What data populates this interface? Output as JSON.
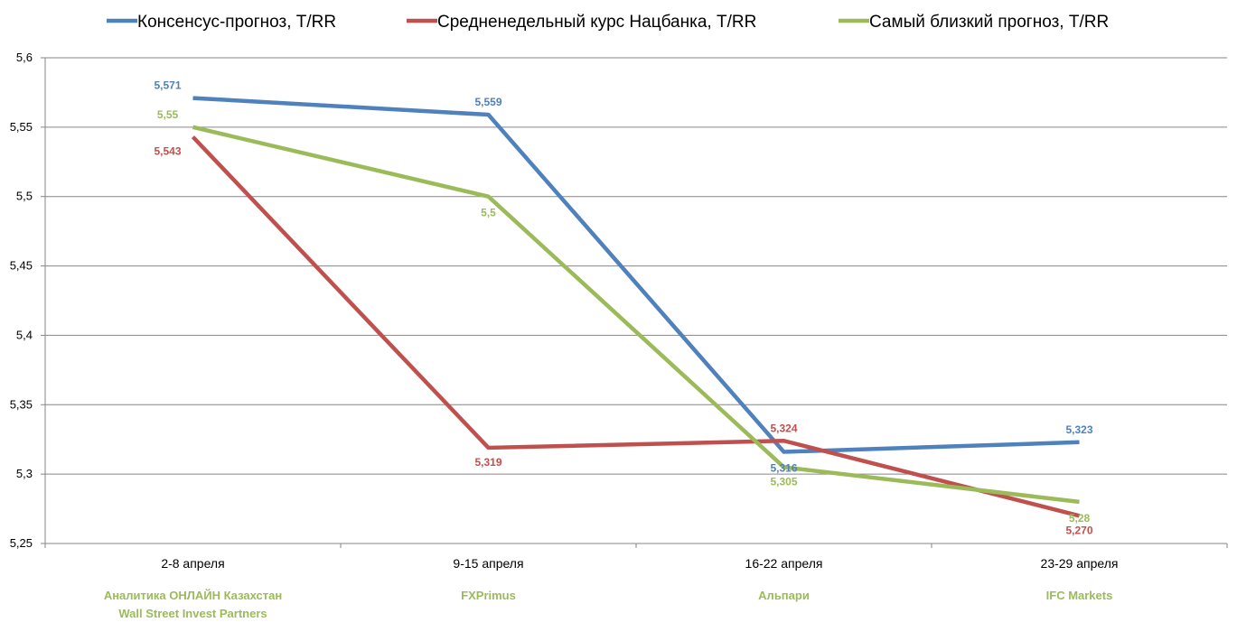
{
  "chart_data": {
    "type": "line",
    "title": "",
    "xlabel": "",
    "ylabel": "",
    "ylim": [
      5.25,
      5.6
    ],
    "yticks": [
      "5,25",
      "5,3",
      "5,35",
      "5,4",
      "5,45",
      "5,5",
      "5,55",
      "5,6"
    ],
    "grid": true,
    "legend_position": "top",
    "categories": [
      "2-8 апреля",
      "9-15 апреля",
      "16-22 апреля",
      "23-29 апреля"
    ],
    "winners": [
      [
        "Аналитика ОНЛАЙН Казахстан",
        "Wall Street Invest Partners"
      ],
      [
        "FXPrimus"
      ],
      [
        "Альпари"
      ],
      [
        "IFC Markets"
      ]
    ],
    "winner_color": "#9BBB59",
    "series": [
      {
        "name": "Консенсус-прогноз, T/RR",
        "color": "#4F81BD",
        "values": [
          5.571,
          5.559,
          5.316,
          5.323
        ],
        "labels": [
          "5,571",
          "5,559",
          "5,316",
          "5,323"
        ],
        "label_color": "#4F81BD"
      },
      {
        "name": "Средненедельный курс Нацбанка, T/RR",
        "color": "#C0504D",
        "values": [
          5.543,
          5.319,
          5.324,
          5.27
        ],
        "labels": [
          "5,543",
          "5,319",
          "5,324",
          "5,270"
        ],
        "label_color": "#C0504D"
      },
      {
        "name": "Самый близкий прогноз, T/RR",
        "color": "#9BBB59",
        "values": [
          5.55,
          5.5,
          5.305,
          5.28
        ],
        "labels": [
          "5,55",
          "5,5",
          "5,305",
          "5,28"
        ],
        "label_color": "#9BBB59"
      }
    ]
  }
}
